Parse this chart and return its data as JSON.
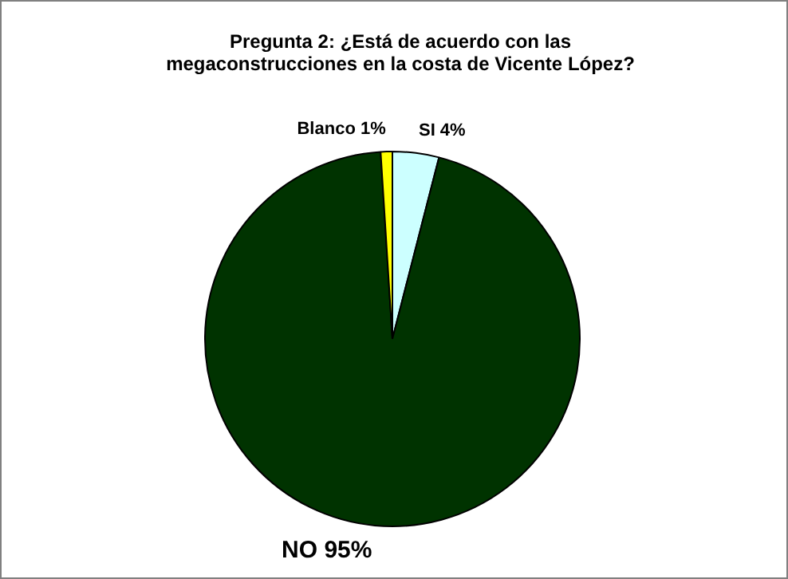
{
  "chart_data": {
    "type": "pie",
    "title": "Pregunta 2: ¿Está de acuerdo con las megaconstrucciones en la costa de Vicente López?",
    "categories": [
      "SI",
      "NO",
      "Blanco"
    ],
    "values": [
      4,
      95,
      1
    ],
    "colors": [
      "#ccffff",
      "#003300",
      "#ffff00"
    ],
    "value_labels": [
      "4%",
      "95%",
      "1%"
    ],
    "legend": false
  }
}
